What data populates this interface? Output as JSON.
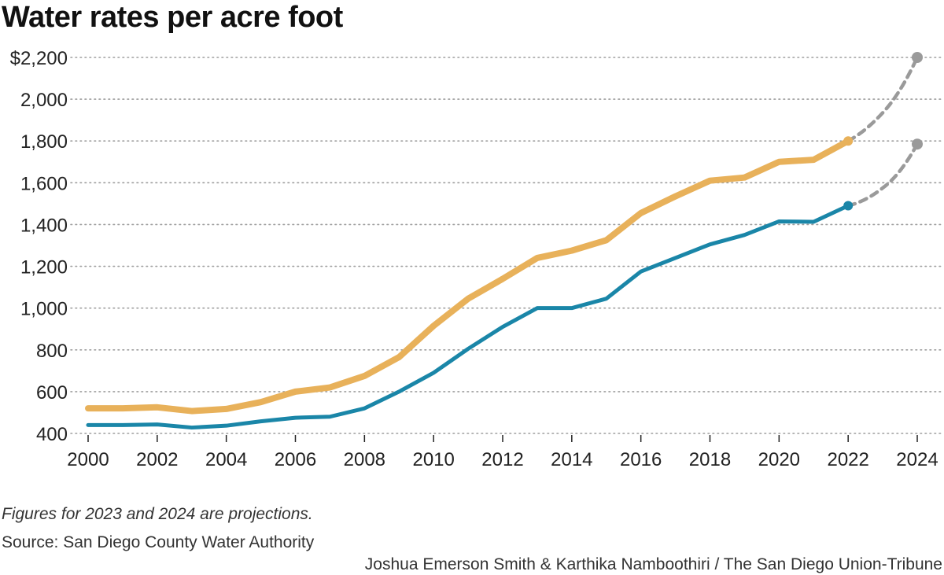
{
  "title": "Water rates per acre foot",
  "note": "Figures for 2023 and 2024 are projections.",
  "source": "Source: San Diego County Water Authority",
  "credit": "Joshua Emerson Smith & Karthika Namboothiri / The San Diego Union-Tribune",
  "colors": {
    "orange": "#e8b15a",
    "blue": "#1a86a8",
    "projection": "#9a9a9a",
    "grid": "#9e9e9e"
  },
  "chart_data": {
    "type": "line",
    "title": "Water rates per acre foot",
    "xlabel": "",
    "ylabel": "",
    "xlim": [
      2000,
      2024
    ],
    "ylim": [
      400,
      2200
    ],
    "y_ticks": [
      400,
      600,
      800,
      1000,
      1200,
      1400,
      1600,
      1800,
      2000,
      2200
    ],
    "y_tick_labels": [
      "400",
      "600",
      "800",
      "1,000",
      "1,200",
      "1,400",
      "1,600",
      "1,800",
      "2,000",
      "$2,200"
    ],
    "x_ticks": [
      2000,
      2002,
      2004,
      2006,
      2008,
      2010,
      2012,
      2014,
      2016,
      2018,
      2020,
      2022,
      2024
    ],
    "x_tick_labels": [
      "2000",
      "2002",
      "2004",
      "2006",
      "2008",
      "2010",
      "2012",
      "2014",
      "2016",
      "2018",
      "2020",
      "2022",
      "2024"
    ],
    "grid": "horizontal dotted",
    "series": [
      {
        "color": "#e8b15a",
        "x": [
          2000,
          2001,
          2002,
          2003,
          2004,
          2005,
          2006,
          2007,
          2008,
          2009,
          2010,
          2011,
          2012,
          2013,
          2014,
          2015,
          2016,
          2017,
          2018,
          2019,
          2020,
          2021,
          2022
        ],
        "values": [
          520,
          520,
          525,
          507,
          517,
          550,
          600,
          620,
          675,
          765,
          915,
          1045,
          1140,
          1240,
          1275,
          1325,
          1455,
          1535,
          1610,
          1625,
          1700,
          1710,
          1800
        ],
        "projection": {
          "x": [
            2022,
            2023,
            2024
          ],
          "values": [
            1800,
            1935,
            2200
          ]
        }
      },
      {
        "color": "#1a86a8",
        "x": [
          2000,
          2001,
          2002,
          2003,
          2004,
          2005,
          2006,
          2007,
          2008,
          2009,
          2010,
          2011,
          2012,
          2013,
          2014,
          2015,
          2016,
          2017,
          2018,
          2019,
          2020,
          2021,
          2022
        ],
        "values": [
          440,
          440,
          443,
          428,
          437,
          458,
          475,
          480,
          520,
          600,
          690,
          805,
          910,
          1000,
          1000,
          1045,
          1175,
          1240,
          1305,
          1350,
          1415,
          1413,
          1490
        ],
        "projection": {
          "x": [
            2022,
            2023,
            2024
          ],
          "values": [
            1490,
            1575,
            1785
          ]
        }
      }
    ]
  }
}
